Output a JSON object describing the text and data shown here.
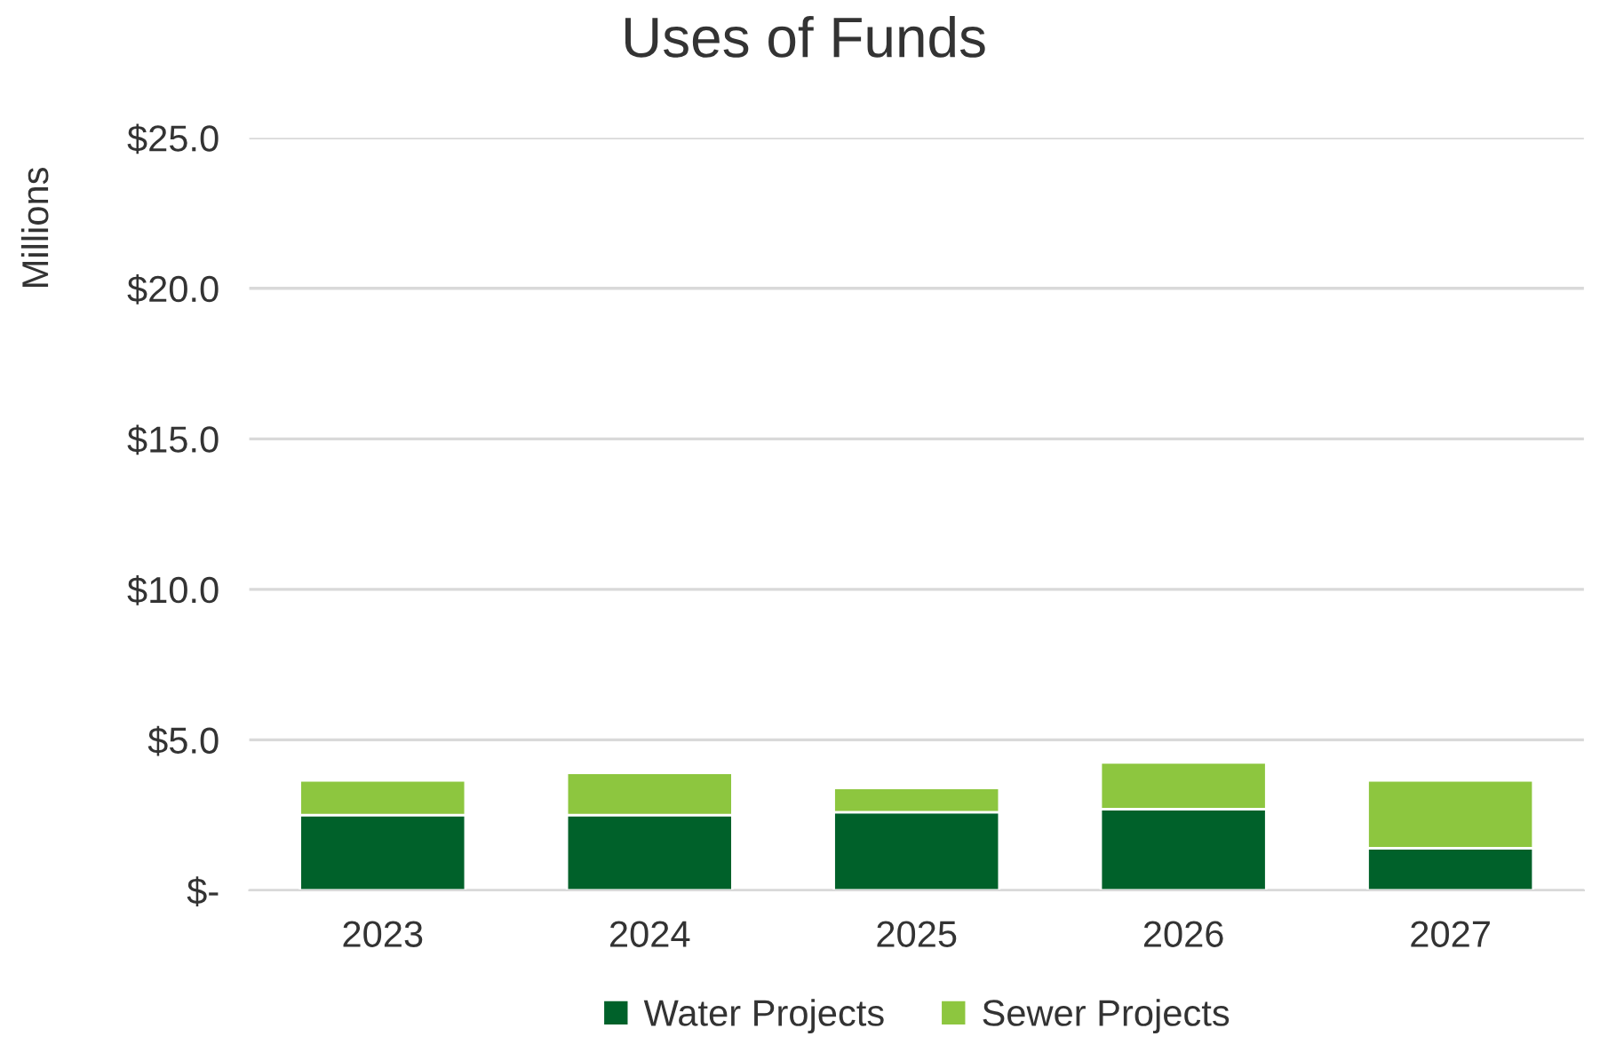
{
  "chart_data": {
    "type": "bar",
    "title": "Uses of Funds",
    "ylabel": "Millions",
    "stacked": true,
    "categories": [
      "2023",
      "2024",
      "2025",
      "2026",
      "2027"
    ],
    "series": [
      {
        "name": "Water Projects",
        "color": "#00612a",
        "values": [
          2.5,
          2.5,
          2.6,
          2.7,
          1.4
        ]
      },
      {
        "name": "Sewer Projects",
        "color": "#8dc63f",
        "values": [
          1.15,
          1.4,
          0.8,
          1.55,
          2.25
        ]
      }
    ],
    "ylim": [
      0,
      25
    ],
    "yticks": [
      {
        "value": 0,
        "label": "$-"
      },
      {
        "value": 5,
        "label": "$5.0"
      },
      {
        "value": 10,
        "label": "$10.0"
      },
      {
        "value": 15,
        "label": "$15.0"
      },
      {
        "value": 20,
        "label": "$20.0"
      },
      {
        "value": 25,
        "label": "$25.0"
      }
    ],
    "grid": "y",
    "legend": "bottom"
  }
}
